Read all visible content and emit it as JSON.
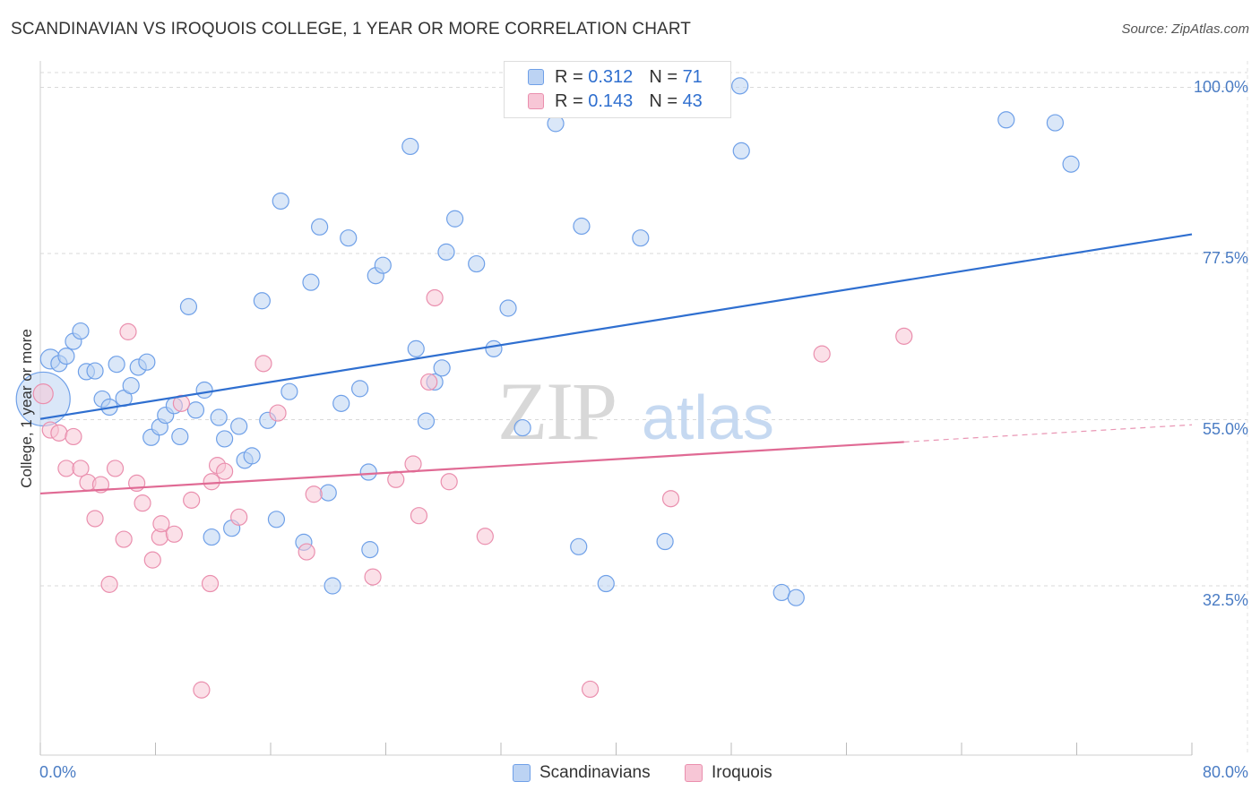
{
  "title": "SCANDINAVIAN VS IROQUOIS COLLEGE, 1 YEAR OR MORE CORRELATION CHART",
  "source": "Source: ZipAtlas.com",
  "watermark": {
    "zip": "ZIP",
    "atlas": "atlas"
  },
  "chart_data": {
    "type": "scatter",
    "xlabel": "",
    "ylabel": "College, 1 year or more",
    "xlim": [
      0,
      80
    ],
    "ylim": [
      10,
      102
    ],
    "x_tick_labels": {
      "min": "0.0%",
      "max": "80.0%"
    },
    "y_ticks": [
      {
        "value": 100,
        "label": "100.0%"
      },
      {
        "value": 77.5,
        "label": "77.5%"
      },
      {
        "value": 55,
        "label": "55.0%"
      },
      {
        "value": 32.5,
        "label": "32.5%"
      }
    ],
    "legend": [
      {
        "r_label": "R = ",
        "r": "0.312",
        "n_label": "N = ",
        "n": "71"
      },
      {
        "r_label": "R = ",
        "r": "0.143",
        "n_label": "N = ",
        "n": "43"
      }
    ],
    "series": [
      {
        "name": "Scandinavians",
        "color": "#6fa0e8",
        "fill": "#bcd3f3",
        "trend": {
          "x0": 0,
          "y0": 55.1,
          "x1": 80,
          "y1": 80.1,
          "dashed_from": null
        },
        "points": [
          [
            0.2,
            57.8,
            30
          ],
          [
            0.7,
            63.2,
            11
          ],
          [
            1.3,
            62.6,
            9
          ],
          [
            1.8,
            63.6,
            9
          ],
          [
            2.3,
            65.6,
            9
          ],
          [
            2.8,
            67.0,
            9
          ],
          [
            3.2,
            61.5,
            9
          ],
          [
            3.8,
            61.6,
            9
          ],
          [
            4.3,
            57.8,
            9
          ],
          [
            4.8,
            56.7,
            9
          ],
          [
            5.3,
            62.5,
            9
          ],
          [
            5.8,
            57.9,
            9
          ],
          [
            6.3,
            59.6,
            9
          ],
          [
            6.8,
            62.1,
            9
          ],
          [
            7.4,
            62.8,
            9
          ],
          [
            7.7,
            52.6,
            9
          ],
          [
            8.3,
            54.0,
            9
          ],
          [
            8.7,
            55.6,
            9
          ],
          [
            9.3,
            56.9,
            9
          ],
          [
            9.7,
            52.7,
            9
          ],
          [
            10.3,
            70.3,
            9
          ],
          [
            10.8,
            56.3,
            9
          ],
          [
            11.4,
            59.0,
            9
          ],
          [
            11.9,
            39.1,
            9
          ],
          [
            12.4,
            55.3,
            9
          ],
          [
            12.8,
            52.4,
            9
          ],
          [
            13.3,
            40.3,
            9
          ],
          [
            13.8,
            54.1,
            9
          ],
          [
            14.2,
            49.5,
            9
          ],
          [
            14.7,
            50.1,
            9
          ],
          [
            15.4,
            71.1,
            9
          ],
          [
            15.8,
            54.9,
            9
          ],
          [
            16.4,
            41.5,
            9
          ],
          [
            16.7,
            84.6,
            9
          ],
          [
            17.3,
            58.8,
            9
          ],
          [
            18.3,
            38.4,
            9
          ],
          [
            18.8,
            73.6,
            9
          ],
          [
            19.4,
            81.1,
            9
          ],
          [
            20.0,
            45.1,
            9
          ],
          [
            20.3,
            32.5,
            9
          ],
          [
            20.9,
            57.2,
            9
          ],
          [
            21.4,
            79.6,
            9
          ],
          [
            22.2,
            59.2,
            9
          ],
          [
            22.8,
            47.9,
            9
          ],
          [
            22.9,
            37.4,
            9
          ],
          [
            23.3,
            74.5,
            9
          ],
          [
            23.8,
            75.9,
            9
          ],
          [
            25.7,
            92.0,
            9
          ],
          [
            26.1,
            64.6,
            9
          ],
          [
            26.8,
            54.8,
            9
          ],
          [
            27.4,
            60.1,
            9
          ],
          [
            27.9,
            62.0,
            9
          ],
          [
            28.2,
            77.7,
            9
          ],
          [
            28.8,
            82.2,
            9
          ],
          [
            30.3,
            76.1,
            9
          ],
          [
            31.5,
            64.6,
            9
          ],
          [
            32.5,
            70.1,
            9
          ],
          [
            33.5,
            53.9,
            9
          ],
          [
            35.8,
            95.1,
            9
          ],
          [
            37.4,
            37.8,
            9
          ],
          [
            37.6,
            81.2,
            9
          ],
          [
            39.3,
            32.8,
            9
          ],
          [
            41.7,
            79.6,
            9
          ],
          [
            43.4,
            38.5,
            9
          ],
          [
            48.6,
            100.2,
            9
          ],
          [
            48.7,
            91.4,
            9
          ],
          [
            51.5,
            31.6,
            9
          ],
          [
            52.5,
            30.9,
            9
          ],
          [
            67.1,
            95.6,
            9
          ],
          [
            70.5,
            95.2,
            9
          ],
          [
            71.6,
            89.6,
            9
          ]
        ]
      },
      {
        "name": "Iroquois",
        "color": "#ea8fae",
        "fill": "#f7c6d6",
        "trend": {
          "x0": 0,
          "y0": 45.0,
          "x1": 80,
          "y1": 54.3,
          "dashed_from": 60
        },
        "points": [
          [
            0.2,
            58.5,
            11
          ],
          [
            0.7,
            53.6,
            9
          ],
          [
            1.3,
            53.2,
            9
          ],
          [
            1.8,
            48.4,
            9
          ],
          [
            2.3,
            52.7,
            9
          ],
          [
            2.8,
            48.4,
            9
          ],
          [
            3.3,
            46.5,
            9
          ],
          [
            3.8,
            41.6,
            9
          ],
          [
            4.2,
            46.2,
            9
          ],
          [
            4.8,
            32.7,
            9
          ],
          [
            5.2,
            48.4,
            9
          ],
          [
            5.8,
            38.8,
            9
          ],
          [
            6.1,
            66.9,
            9
          ],
          [
            6.7,
            46.4,
            9
          ],
          [
            7.1,
            43.7,
            9
          ],
          [
            7.8,
            36.0,
            9
          ],
          [
            8.3,
            39.1,
            9
          ],
          [
            8.4,
            40.9,
            9
          ],
          [
            9.3,
            39.5,
            9
          ],
          [
            9.8,
            57.2,
            9
          ],
          [
            10.5,
            44.1,
            9
          ],
          [
            11.2,
            18.4,
            9
          ],
          [
            11.8,
            32.8,
            9
          ],
          [
            11.9,
            46.6,
            9
          ],
          [
            12.3,
            48.8,
            9
          ],
          [
            12.8,
            48.0,
            9
          ],
          [
            13.8,
            41.8,
            9
          ],
          [
            15.5,
            62.6,
            9
          ],
          [
            16.5,
            55.9,
            9
          ],
          [
            18.5,
            37.1,
            9
          ],
          [
            19.0,
            44.9,
            9
          ],
          [
            23.1,
            33.7,
            9
          ],
          [
            24.7,
            46.9,
            9
          ],
          [
            25.9,
            49.0,
            9
          ],
          [
            26.3,
            42.0,
            9
          ],
          [
            27.0,
            60.1,
            9
          ],
          [
            27.4,
            71.5,
            9
          ],
          [
            28.4,
            46.6,
            9
          ],
          [
            30.9,
            39.2,
            9
          ],
          [
            38.2,
            18.5,
            9
          ],
          [
            43.8,
            44.3,
            9
          ],
          [
            54.3,
            63.9,
            9
          ],
          [
            60.0,
            66.3,
            9
          ]
        ]
      }
    ]
  }
}
